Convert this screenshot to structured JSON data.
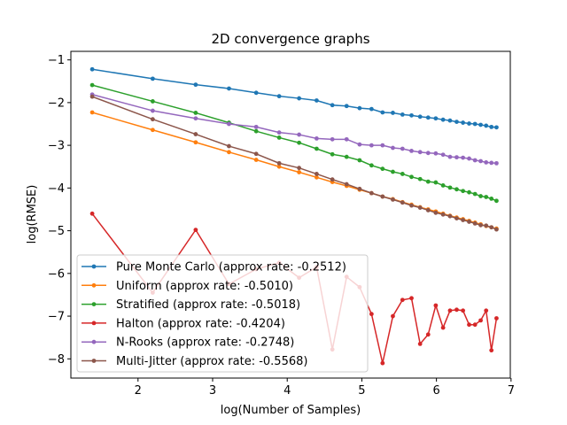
{
  "chart_data": {
    "type": "line",
    "title": "2D convergence graphs",
    "xlabel": "log(Number of Samples)",
    "ylabel": "log(RMSE)",
    "xlim": [
      1.1,
      6.99
    ],
    "ylim": [
      -8.45,
      -0.8
    ],
    "xticks": [
      2,
      3,
      4,
      5,
      6,
      7
    ],
    "yticks": [
      -1,
      -2,
      -3,
      -4,
      -5,
      -6,
      -7,
      -8
    ],
    "xtick_labels": [
      "2",
      "3",
      "4",
      "5",
      "6",
      "7"
    ],
    "ytick_labels": [
      "−1",
      "−2",
      "−3",
      "−4",
      "−5",
      "−6",
      "−7",
      "−8"
    ],
    "grid": false,
    "legend_position": "lower-left",
    "x": [
      1.386,
      2.197,
      2.773,
      3.219,
      3.584,
      3.892,
      4.159,
      4.394,
      4.605,
      4.796,
      4.97,
      5.13,
      5.278,
      5.416,
      5.545,
      5.666,
      5.781,
      5.889,
      5.991,
      6.089,
      6.182,
      6.271,
      6.356,
      6.438,
      6.517,
      6.593,
      6.666,
      6.737,
      6.805
    ],
    "series": [
      {
        "name": "Pure Monte Carlo (approx rate: -0.2512)",
        "color": "#1f77b4",
        "values": [
          -1.22,
          -1.44,
          -1.58,
          -1.67,
          -1.77,
          -1.85,
          -1.9,
          -1.95,
          -2.06,
          -2.08,
          -2.13,
          -2.15,
          -2.23,
          -2.24,
          -2.28,
          -2.3,
          -2.33,
          -2.35,
          -2.37,
          -2.4,
          -2.42,
          -2.45,
          -2.47,
          -2.49,
          -2.5,
          -2.52,
          -2.54,
          -2.57,
          -2.58
        ]
      },
      {
        "name": "Uniform (approx rate: -0.5010)",
        "color": "#ff7f0e",
        "values": [
          -2.23,
          -2.64,
          -2.93,
          -3.16,
          -3.34,
          -3.5,
          -3.63,
          -3.75,
          -3.86,
          -3.95,
          -4.04,
          -4.12,
          -4.2,
          -4.26,
          -4.33,
          -4.39,
          -4.45,
          -4.5,
          -4.55,
          -4.6,
          -4.65,
          -4.69,
          -4.73,
          -4.77,
          -4.81,
          -4.85,
          -4.89,
          -4.92,
          -4.95
        ]
      },
      {
        "name": "Stratified (approx rate: -0.5018)",
        "color": "#2ca02c",
        "values": [
          -1.59,
          -1.97,
          -2.24,
          -2.47,
          -2.67,
          -2.82,
          -2.94,
          -3.08,
          -3.21,
          -3.27,
          -3.35,
          -3.47,
          -3.55,
          -3.62,
          -3.67,
          -3.74,
          -3.79,
          -3.85,
          -3.87,
          -3.94,
          -3.99,
          -4.03,
          -4.07,
          -4.1,
          -4.14,
          -4.19,
          -4.21,
          -4.25,
          -4.3
        ]
      },
      {
        "name": "Halton (approx rate: -0.4204)",
        "color": "#d62728",
        "values": [
          -4.6,
          -6.45,
          -4.98,
          -6.25,
          -5.9,
          -5.75,
          -6.1,
          -5.85,
          -7.78,
          -6.08,
          -6.32,
          -6.95,
          -8.1,
          -7.0,
          -6.62,
          -6.58,
          -7.65,
          -7.43,
          -6.75,
          -7.27,
          -6.87,
          -6.85,
          -6.87,
          -7.2,
          -7.2,
          -7.1,
          -6.87,
          -7.8,
          -7.05
        ]
      },
      {
        "name": "N-Rooks (approx rate: -0.2748)",
        "color": "#9467bd",
        "values": [
          -1.81,
          -2.19,
          -2.37,
          -2.5,
          -2.57,
          -2.7,
          -2.75,
          -2.84,
          -2.86,
          -2.86,
          -2.98,
          -3.0,
          -3.0,
          -3.06,
          -3.08,
          -3.13,
          -3.16,
          -3.18,
          -3.19,
          -3.22,
          -3.27,
          -3.28,
          -3.29,
          -3.31,
          -3.35,
          -3.37,
          -3.4,
          -3.41,
          -3.42
        ]
      },
      {
        "name": "Multi-Jitter (approx rate: -0.5568)",
        "color": "#8c564b",
        "values": [
          -1.86,
          -2.39,
          -2.74,
          -3.02,
          -3.2,
          -3.42,
          -3.53,
          -3.67,
          -3.8,
          -3.91,
          -4.02,
          -4.12,
          -4.2,
          -4.27,
          -4.34,
          -4.41,
          -4.46,
          -4.52,
          -4.58,
          -4.62,
          -4.66,
          -4.71,
          -4.75,
          -4.79,
          -4.83,
          -4.87,
          -4.88,
          -4.92,
          -4.97
        ]
      }
    ]
  }
}
